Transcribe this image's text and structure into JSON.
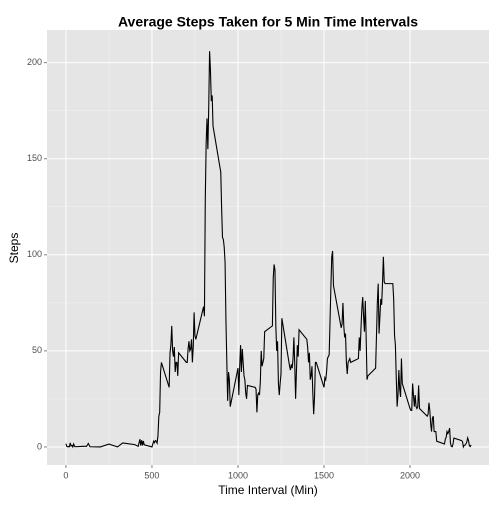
{
  "chart_data": {
    "type": "line",
    "title": "Average Steps Taken for 5 Min Time Intervals",
    "x_label": "Time Interval (Min)",
    "y_label": "Steps",
    "xlim": [
      -110,
      2459
    ],
    "ylim": [
      -9.4,
      217
    ],
    "xticks": [
      0,
      500,
      1000,
      1500,
      2000
    ],
    "yticks": [
      0,
      50,
      100,
      150,
      200
    ],
    "grid": true,
    "x": [
      0,
      5,
      10,
      15,
      20,
      25,
      30,
      35,
      40,
      45,
      50,
      55,
      100,
      120,
      130,
      140,
      200,
      250,
      300,
      330,
      400,
      420,
      430,
      435,
      440,
      445,
      450,
      455,
      500,
      505,
      510,
      515,
      520,
      525,
      530,
      535,
      540,
      545,
      550,
      555,
      600,
      605,
      610,
      615,
      620,
      625,
      630,
      635,
      640,
      645,
      650,
      655,
      700,
      705,
      710,
      715,
      720,
      725,
      730,
      735,
      740,
      745,
      750,
      755,
      800,
      805,
      810,
      815,
      820,
      825,
      830,
      835,
      840,
      845,
      850,
      855,
      900,
      905,
      910,
      915,
      920,
      925,
      930,
      935,
      940,
      945,
      950,
      955,
      1000,
      1005,
      1010,
      1015,
      1020,
      1025,
      1030,
      1035,
      1040,
      1045,
      1050,
      1055,
      1100,
      1105,
      1110,
      1115,
      1120,
      1125,
      1130,
      1135,
      1140,
      1145,
      1150,
      1155,
      1200,
      1205,
      1210,
      1215,
      1220,
      1225,
      1230,
      1235,
      1240,
      1245,
      1250,
      1255,
      1300,
      1305,
      1310,
      1315,
      1320,
      1325,
      1330,
      1335,
      1340,
      1345,
      1350,
      1355,
      1400,
      1405,
      1410,
      1415,
      1420,
      1425,
      1430,
      1435,
      1440,
      1445,
      1450,
      1455,
      1500,
      1505,
      1510,
      1515,
      1520,
      1525,
      1530,
      1535,
      1540,
      1545,
      1550,
      1555,
      1600,
      1605,
      1610,
      1615,
      1620,
      1625,
      1630,
      1635,
      1640,
      1645,
      1650,
      1655,
      1700,
      1705,
      1710,
      1715,
      1720,
      1725,
      1730,
      1735,
      1740,
      1745,
      1750,
      1755,
      1800,
      1805,
      1810,
      1815,
      1820,
      1825,
      1830,
      1835,
      1840,
      1845,
      1850,
      1855,
      1900,
      1905,
      1910,
      1915,
      1920,
      1925,
      1930,
      1935,
      1940,
      1945,
      1950,
      1955,
      2000,
      2005,
      2010,
      2015,
      2020,
      2025,
      2030,
      2035,
      2040,
      2045,
      2050,
      2055,
      2100,
      2105,
      2110,
      2115,
      2120,
      2125,
      2130,
      2135,
      2140,
      2145,
      2150,
      2155,
      2200,
      2205,
      2210,
      2215,
      2220,
      2225,
      2230,
      2235,
      2240,
      2245,
      2250,
      2255,
      2300,
      2305,
      2310,
      2315,
      2320,
      2325,
      2330,
      2335,
      2340,
      2345,
      2350,
      2355
    ],
    "series": [
      {
        "name": "Steps",
        "color": "#000000",
        "values": [
          1.7,
          0.3,
          0.1,
          0.2,
          0.1,
          2.1,
          0.5,
          0.9,
          0,
          1.5,
          0.3,
          0.1,
          0.3,
          0.3,
          1.8,
          0.1,
          0,
          1.5,
          0,
          2.1,
          1.2,
          0.3,
          4,
          0.7,
          3.5,
          0.8,
          3.1,
          1.1,
          0,
          1.6,
          3,
          2.2,
          3.3,
          3,
          2,
          6,
          16,
          18,
          39,
          44,
          31,
          49,
          53,
          63,
          50,
          47,
          52,
          39,
          44,
          44,
          37,
          49,
          44,
          44,
          51,
          55,
          50,
          51,
          56,
          44,
          52,
          70,
          58,
          56,
          73,
          68,
          129,
          158,
          171,
          155,
          177,
          206,
          196,
          180,
          183,
          167,
          143,
          124,
          109,
          108,
          104,
          96,
          66,
          45,
          24,
          39,
          35,
          21,
          41,
          27,
          42,
          53,
          39,
          51,
          44,
          37,
          35,
          28,
          25,
          32,
          31,
          30,
          18,
          27,
          28,
          27,
          34,
          50,
          42,
          44,
          46,
          60,
          63,
          88,
          95,
          92,
          63,
          50,
          55,
          33,
          27,
          33,
          38,
          67,
          42,
          40,
          43,
          41,
          46,
          57,
          43,
          25,
          40,
          53,
          47,
          61,
          56,
          52,
          44,
          49,
          35,
          37,
          42,
          28,
          17,
          26,
          44,
          44,
          31,
          36,
          35,
          39,
          46,
          47,
          48,
          65,
          83,
          99,
          102,
          84,
          62,
          64,
          75,
          63,
          57,
          59,
          44,
          38,
          44,
          45,
          46,
          44,
          46,
          57,
          50,
          62,
          72,
          78,
          68,
          60,
          76,
          57,
          35,
          37,
          41,
          58,
          75,
          85,
          59,
          68,
          77,
          74,
          85,
          99,
          86,
          85,
          85,
          77,
          58,
          53,
          36,
          21,
          27,
          40,
          30,
          26,
          46,
          33,
          20,
          19,
          19,
          33,
          27,
          21,
          27,
          21,
          20,
          21,
          32,
          20,
          16,
          17,
          23,
          19,
          12,
          8,
          15,
          16,
          8,
          8,
          8,
          3,
          1.5,
          4,
          5,
          8,
          7,
          8,
          9.8,
          2,
          0.3,
          0.1,
          1.6,
          4.6,
          3.3,
          2.8,
          0,
          0.8,
          1,
          1.6,
          2.6,
          4.7,
          3.3,
          0.6,
          0.2,
          1.1
        ]
      }
    ]
  }
}
